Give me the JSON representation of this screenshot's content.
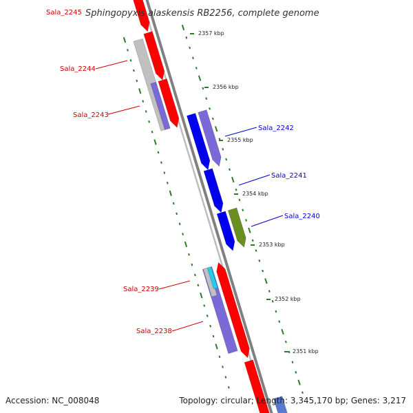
{
  "title": "Sphingopyxis alaskensis RB2256, complete genome",
  "footer": {
    "accession": "Accession: NC_008048",
    "summary": "Topology: circular; Length: 3,345,170 bp; Genes: 3,217"
  },
  "colors": {
    "backbone": "#808080",
    "forward_label": "#cc0000",
    "reverse_label": "#0000cc",
    "ticks": "#2a7a2a",
    "red_gene": "#ff0000",
    "blue_gene": "#0000ee",
    "purple_feature": "#7a6ad8",
    "grey_feature": "#c0c0c0",
    "olive_feature": "#6b8e23",
    "cyan_feature": "#22ccee"
  },
  "scale": {
    "unit": "kbp",
    "kbp_labels": [
      "2357 kbp",
      "2356 kbp",
      "2355 kbp",
      "2354 kbp",
      "2353 kbp",
      "2352 kbp",
      "2351 kbp"
    ]
  },
  "genes": [
    {
      "name": "Sala_2245",
      "strand": "forward"
    },
    {
      "name": "Sala_2244",
      "strand": "forward"
    },
    {
      "name": "Sala_2243",
      "strand": "forward"
    },
    {
      "name": "Sala_2242",
      "strand": "reverse"
    },
    {
      "name": "Sala_2241",
      "strand": "reverse"
    },
    {
      "name": "Sala_2240",
      "strand": "reverse"
    },
    {
      "name": "Sala_2239",
      "strand": "forward"
    },
    {
      "name": "Sala_2238",
      "strand": "forward"
    }
  ]
}
